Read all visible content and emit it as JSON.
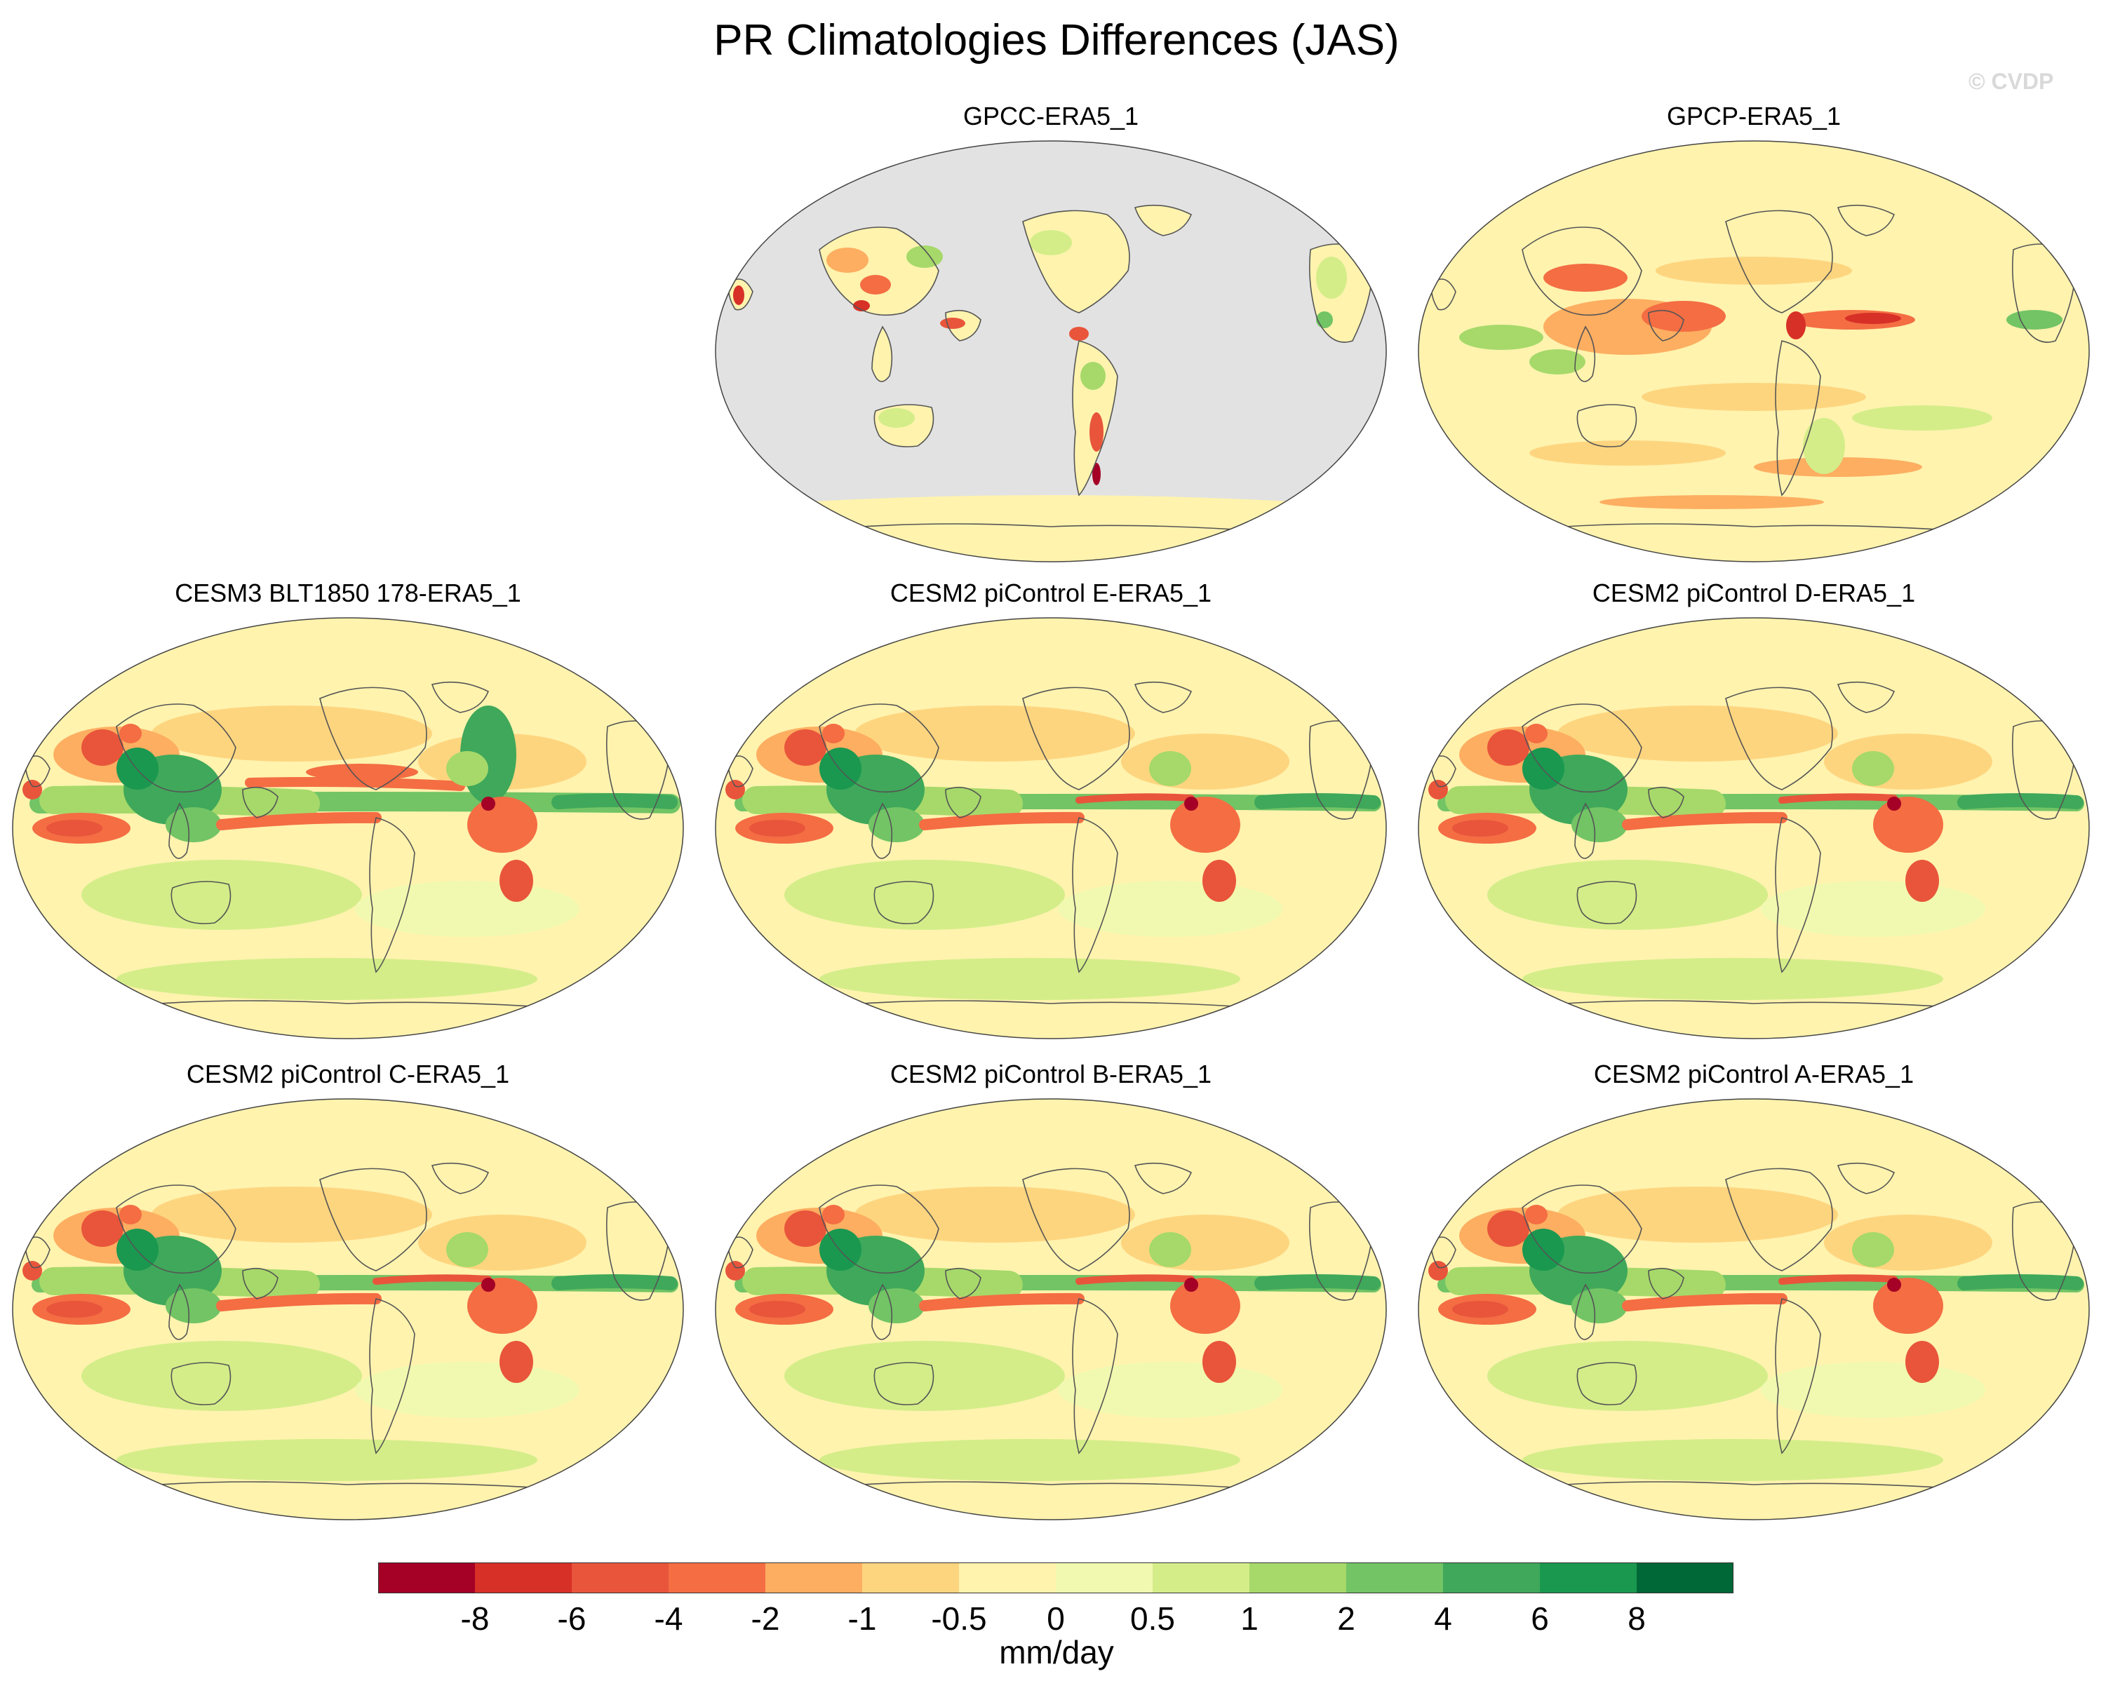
{
  "title": "PR Climatologies Differences (JAS)",
  "credit": "© CVDP",
  "panels": [
    {
      "title": "GPCC-ERA5_1",
      "variant": "land"
    },
    {
      "title": "GPCP-ERA5_1",
      "variant": "gpcp"
    },
    {
      "title": "CESM3 BLT1850 178-ERA5_1",
      "variant": "cesm3"
    },
    {
      "title": "CESM2 piControl E-ERA5_1",
      "variant": "cesm2"
    },
    {
      "title": "CESM2 piControl D-ERA5_1",
      "variant": "cesm2"
    },
    {
      "title": "CESM2 piControl C-ERA5_1",
      "variant": "cesm2"
    },
    {
      "title": "CESM2 piControl B-ERA5_1",
      "variant": "cesm2"
    },
    {
      "title": "CESM2 piControl A-ERA5_1",
      "variant": "cesm2"
    }
  ],
  "colorbar": {
    "label": "mm/day",
    "ticks": [
      "-8",
      "-6",
      "-4",
      "-2",
      "-1",
      "-0.5",
      "0",
      "0.5",
      "1",
      "2",
      "4",
      "6",
      "8"
    ],
    "colors": [
      "#a50026",
      "#d73027",
      "#e8553b",
      "#f46d43",
      "#fdae61",
      "#fed57f",
      "#fff3ae",
      "#f1f9b0",
      "#d4ed89",
      "#a6d96a",
      "#72c465",
      "#3fa85a",
      "#1a9850",
      "#006837"
    ]
  },
  "map_colors": {
    "background": "#fff3ae",
    "missing": "#e2e2e2",
    "coast": "#555555"
  }
}
